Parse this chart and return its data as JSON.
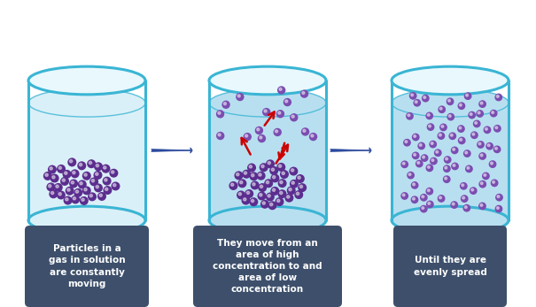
{
  "bg_color": "#ffffff",
  "beaker_edge_color": "#3ab5d4",
  "beaker_fill_light": "#daf0f8",
  "beaker_fill_blue": "#b8dff0",
  "particle_color_dense": "#5b2d8e",
  "particle_color_spread": "#7b4db0",
  "arrow_color": "#2b4a9e",
  "red_arrow_color": "#cc0000",
  "label_bg_color": "#3d4f6b",
  "label_text_color": "#ffffff",
  "label1": "Particles in a\ngas in solution\nare constantly\nmoving",
  "label2": "They move from an\narea of high\nconcentration to and\narea of low\nconcentration",
  "label3": "Until they are\nevenly spread",
  "figsize": [
    6.05,
    3.47
  ],
  "dpi": 100
}
